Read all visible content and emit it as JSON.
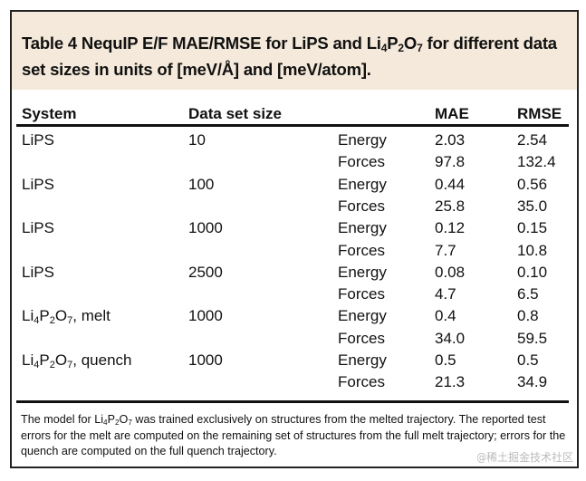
{
  "caption": {
    "prefix": "Table 4 NequIP E/F MAE/RMSE for LiPS and ",
    "formula": [
      "Li",
      "4",
      "P",
      "2",
      "O",
      "7"
    ],
    "suffix": " for different data set sizes in units of [meV/Å] and [meV/atom]."
  },
  "headers": {
    "system": "System",
    "size": "Data set size",
    "mae": "MAE",
    "rmse": "RMSE"
  },
  "rows": [
    {
      "system": "LiPS",
      "size": "10",
      "energy": {
        "label": "Energy",
        "mae": "2.03",
        "rmse": "2.54"
      },
      "forces": {
        "label": "Forces",
        "mae": "97.8",
        "rmse": "132.4"
      }
    },
    {
      "system": "LiPS",
      "size": "100",
      "energy": {
        "label": "Energy",
        "mae": "0.44",
        "rmse": "0.56"
      },
      "forces": {
        "label": "Forces",
        "mae": "25.8",
        "rmse": "35.0"
      }
    },
    {
      "system": "LiPS",
      "size": "1000",
      "energy": {
        "label": "Energy",
        "mae": "0.12",
        "rmse": "0.15"
      },
      "forces": {
        "label": "Forces",
        "mae": "7.7",
        "rmse": "10.8"
      }
    },
    {
      "system": "LiPS",
      "size": "2500",
      "energy": {
        "label": "Energy",
        "mae": "0.08",
        "rmse": "0.10"
      },
      "forces": {
        "label": "Forces",
        "mae": "4.7",
        "rmse": "6.5"
      }
    },
    {
      "system": "Li4P2O7, melt",
      "size": "1000",
      "energy": {
        "label": "Energy",
        "mae": "0.4",
        "rmse": "0.8"
      },
      "forces": {
        "label": "Forces",
        "mae": "34.0",
        "rmse": "59.5"
      }
    },
    {
      "system": "Li4P2O7, quench",
      "size": "1000",
      "energy": {
        "label": "Energy",
        "mae": "0.5",
        "rmse": "0.5"
      },
      "forces": {
        "label": "Forces",
        "mae": "21.3",
        "rmse": "34.9"
      }
    }
  ],
  "footnote": {
    "prefix": "The model for ",
    "formula": [
      "Li",
      "4",
      "P",
      "2",
      "O",
      "7"
    ],
    "suffix": " was trained exclusively on structures from the melted trajectory. The reported test errors for the melt are computed on the remaining set of structures from the full melt trajectory; errors for the quench are computed on the full quench trajectory."
  },
  "watermark": "@稀土掘金技术社区",
  "colors": {
    "caption_bg": "#f4e9da",
    "border": "#222222"
  }
}
